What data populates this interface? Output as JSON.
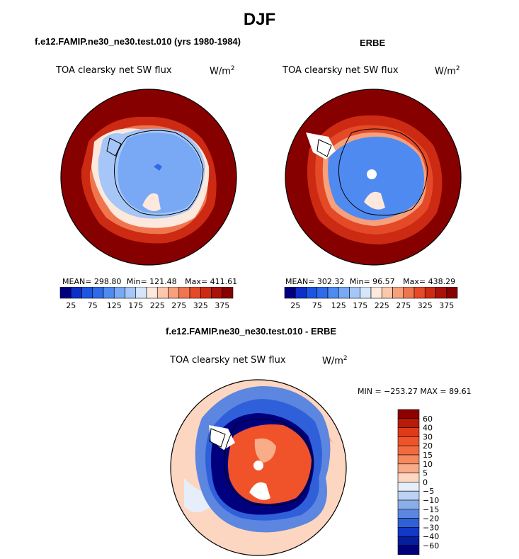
{
  "figure": {
    "title": "DJF",
    "model_title": "f.e12.FAMIP.ne30_ne30.test.010 (yrs 1980-1984)",
    "obs_title": "ERBE",
    "diff_title": "f.e12.FAMIP.ne30_ne30.test.010 - ERBE"
  },
  "panels": {
    "model": {
      "variable": "TOA clearsky net SW flux",
      "units_base": "W/m",
      "units_exp": "2",
      "mean_label": "MEAN=",
      "mean": "298.80",
      "min_label": "Min=",
      "min": "121.48",
      "max_label": "Max=",
      "max": "411.61"
    },
    "obs": {
      "variable": "TOA clearsky net SW flux",
      "units_base": "W/m",
      "units_exp": "2",
      "mean_label": "MEAN=",
      "mean": "302.32",
      "min_label": "Min=",
      "min": "96.57",
      "max_label": "Max=",
      "max": "438.29"
    },
    "diff": {
      "variable": "TOA clearsky net SW flux",
      "units_base": "W/m",
      "units_exp": "2",
      "minmax": "MIN = −253.27 MAX =  89.61"
    }
  },
  "chart_data": [
    {
      "type": "heatmap",
      "projection": "south polar stereographic",
      "title": "f.e12.FAMIP.ne30_ne30.test.010 (yrs 1980-1984)",
      "variable": "TOA clearsky net SW flux",
      "units": "W/m2",
      "mean": 298.8,
      "min": 121.48,
      "max": 411.61,
      "colorbar_ticks": [
        "25",
        "75",
        "125",
        "175",
        "225",
        "275",
        "325",
        "375"
      ],
      "colorbar_colors": [
        "#00007f",
        "#0c2fc8",
        "#1d55e0",
        "#2f6ae8",
        "#4f8af0",
        "#79a9f4",
        "#a5c6f6",
        "#d6e6fa",
        "#fce8dc",
        "#fbc8ac",
        "#f7a07c",
        "#f0754e",
        "#e44a28",
        "#cc2a12",
        "#a81208",
        "#870000"
      ]
    },
    {
      "type": "heatmap",
      "projection": "south polar stereographic",
      "title": "ERBE",
      "variable": "TOA clearsky net SW flux",
      "units": "W/m2",
      "mean": 302.32,
      "min": 96.57,
      "max": 438.29,
      "colorbar_ticks": [
        "25",
        "75",
        "125",
        "175",
        "225",
        "275",
        "325",
        "375"
      ],
      "colorbar_colors": [
        "#00007f",
        "#0c2fc8",
        "#1d55e0",
        "#2f6ae8",
        "#4f8af0",
        "#79a9f4",
        "#a5c6f6",
        "#d6e6fa",
        "#fce8dc",
        "#fbc8ac",
        "#f7a07c",
        "#f0754e",
        "#e44a28",
        "#cc2a12",
        "#a81208",
        "#870000"
      ]
    },
    {
      "type": "heatmap",
      "projection": "south polar stereographic",
      "title": "f.e12.FAMIP.ne30_ne30.test.010 - ERBE",
      "variable": "TOA clearsky net SW flux",
      "units": "W/m2",
      "min": -253.27,
      "max": 89.61,
      "colorbar_ticks": [
        "60",
        "40",
        "30",
        "20",
        "15",
        "10",
        "5",
        "0",
        "−5",
        "−10",
        "−15",
        "−20",
        "−30",
        "−40",
        "−60"
      ],
      "colorbar_colors": [
        "#8c0000",
        "#bb1a08",
        "#e03a18",
        "#f0522a",
        "#f26b40",
        "#f48a5e",
        "#f8ac88",
        "#fcd6c0",
        "#e6eefa",
        "#bcd2f4",
        "#8caee8",
        "#5c86e0",
        "#2f60da",
        "#1238c8",
        "#061d9c",
        "#00007f"
      ]
    }
  ]
}
